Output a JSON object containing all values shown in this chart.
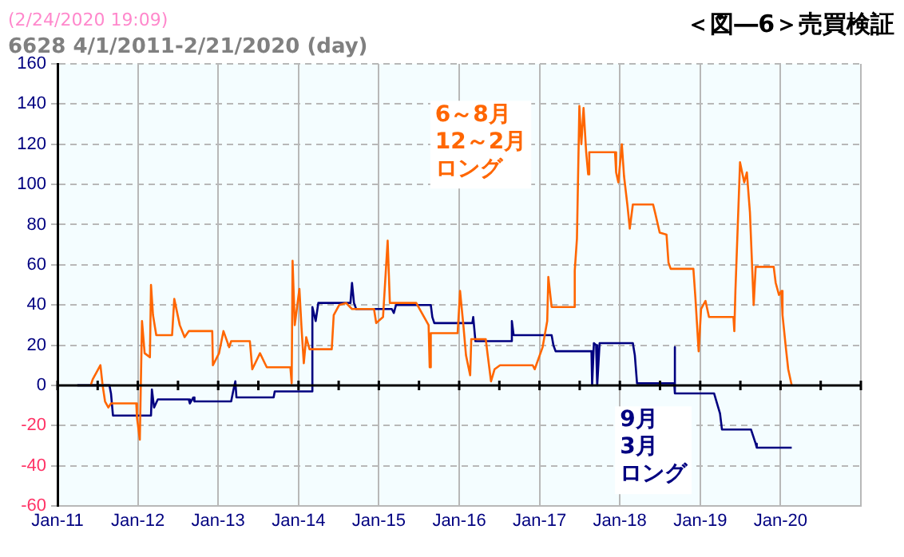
{
  "chart_data": {
    "type": "line",
    "title": "＜図―6＞売買検証",
    "subtitle": "6628  4/1/2011-2/21/2020 (day)",
    "annotations": [
      "(2/24/2020 19:09)"
    ],
    "xlim": [
      "2011-01-01",
      "2021-01-01"
    ],
    "xticks": [
      {
        "value": "2011-01-01",
        "label": "Jan-11"
      },
      {
        "value": "2012-01-01",
        "label": "Jan-12"
      },
      {
        "value": "2013-01-01",
        "label": "Jan-13"
      },
      {
        "value": "2014-01-01",
        "label": "Jan-14"
      },
      {
        "value": "2015-01-01",
        "label": "Jan-15"
      },
      {
        "value": "2016-01-01",
        "label": "Jan-16"
      },
      {
        "value": "2017-01-01",
        "label": "Jan-17"
      },
      {
        "value": "2018-01-01",
        "label": "Jan-18"
      },
      {
        "value": "2019-01-01",
        "label": "Jan-19"
      },
      {
        "value": "2020-01-01",
        "label": "Jan-20"
      },
      {
        "value": "2021-01-01",
        "label": null
      }
    ],
    "ylim": [
      -60,
      160
    ],
    "yticks": [
      -60,
      -40,
      -20,
      0,
      20,
      40,
      60,
      80,
      100,
      120,
      140,
      160
    ],
    "grid": true,
    "legend": false,
    "marker": "none",
    "line_style": "solid",
    "ref_lines": [
      {
        "axis": "y",
        "value": 0,
        "color": "#000000"
      }
    ],
    "series": [
      {
        "name": "6～8月12～2月ロング",
        "color": "#ff6600",
        "x": [
          "2011-06-01",
          "2011-06-10",
          "2011-07-15",
          "2011-07-25",
          "2011-08-05",
          "2011-08-20",
          "2011-09-01",
          "2011-12-25",
          "2011-12-28",
          "2012-01-10",
          "2012-01-20",
          "2012-02-01",
          "2012-02-25",
          "2012-03-01",
          "2012-03-10",
          "2012-03-25",
          "2012-06-05",
          "2012-06-15",
          "2012-07-10",
          "2012-08-01",
          "2012-08-20",
          "2012-12-05",
          "2012-12-08",
          "2013-01-05",
          "2013-01-25",
          "2013-02-20",
          "2013-03-01",
          "2013-05-25",
          "2013-06-05",
          "2013-07-10",
          "2013-08-01",
          "2013-08-10",
          "2013-11-25",
          "2013-12-01",
          "2013-12-05",
          "2013-12-15",
          "2014-01-05",
          "2014-01-15",
          "2014-01-25",
          "2014-02-05",
          "2014-02-20",
          "2014-06-01",
          "2014-06-10",
          "2014-07-05",
          "2014-08-05",
          "2014-09-01",
          "2014-12-10",
          "2014-12-20",
          "2015-01-20",
          "2015-02-10",
          "2015-02-20",
          "2015-06-20",
          "2015-07-10",
          "2015-08-15",
          "2015-08-20",
          "2015-08-25",
          "2015-12-25",
          "2016-01-05",
          "2016-01-20",
          "2016-02-01",
          "2016-02-20",
          "2016-02-25",
          "2016-05-01",
          "2016-05-10",
          "2016-05-25",
          "2016-06-10",
          "2016-07-05",
          "2016-12-01",
          "2016-12-10",
          "2017-01-15",
          "2017-02-05",
          "2017-02-10",
          "2017-02-25",
          "2017-06-05",
          "2017-06-10",
          "2017-06-20",
          "2017-07-01",
          "2017-07-10",
          "2017-07-20",
          "2017-08-01",
          "2017-08-10",
          "2017-08-15",
          "2017-12-10",
          "2017-12-15",
          "2017-12-25",
          "2018-01-10",
          "2018-01-20",
          "2018-02-05",
          "2018-02-15",
          "2018-03-01",
          "2018-06-01",
          "2018-06-10",
          "2018-07-01",
          "2018-08-01",
          "2018-08-10",
          "2018-08-20",
          "2018-12-01",
          "2018-12-10",
          "2018-12-25",
          "2019-01-05",
          "2019-01-25",
          "2019-02-10",
          "2019-06-01",
          "2019-06-05",
          "2019-06-10",
          "2019-07-01",
          "2019-07-20",
          "2019-08-01",
          "2019-08-15",
          "2019-09-01",
          "2019-09-10",
          "2019-12-01",
          "2019-12-10",
          "2019-12-25",
          "2020-01-05",
          "2020-01-10",
          "2020-01-25",
          "2020-02-05",
          "2020-02-21"
        ],
        "values": [
          0,
          3,
          10,
          0,
          -8,
          -11,
          -9,
          -9,
          -16,
          -27,
          32,
          16,
          14,
          50,
          35,
          25,
          25,
          43,
          30,
          24,
          27,
          27,
          10,
          16,
          27,
          19,
          22,
          22,
          8,
          16,
          11,
          9,
          9,
          1,
          62,
          30,
          48,
          28,
          11,
          24,
          18,
          18,
          35,
          40,
          41,
          38,
          38,
          31,
          34,
          72,
          41,
          41,
          37,
          30,
          9,
          26,
          26,
          47,
          30,
          15,
          5,
          23,
          23,
          15,
          2,
          8,
          10,
          10,
          8,
          19,
          32,
          54,
          39,
          39,
          57,
          73,
          139,
          120,
          138,
          116,
          105,
          116,
          116,
          106,
          101,
          120,
          104,
          89,
          78,
          90,
          90,
          86,
          76,
          75,
          61,
          58,
          58,
          44,
          17,
          38,
          42,
          34,
          34,
          27,
          47,
          111,
          101,
          106,
          86,
          40,
          59,
          59,
          51,
          45,
          47,
          35,
          19,
          8,
          0
        ]
      },
      {
        "name": "9月3月ロング",
        "color": "#000080",
        "x": [
          "2011-04-01",
          "2011-08-25",
          "2011-09-01",
          "2011-09-10",
          "2012-03-01",
          "2012-03-05",
          "2012-03-15",
          "2012-04-01",
          "2012-08-20",
          "2012-08-25",
          "2012-09-10",
          "2012-09-15",
          "2013-03-01",
          "2013-03-10",
          "2013-03-20",
          "2013-03-25",
          "2013-09-10",
          "2013-09-15",
          "2014-03-01",
          "2014-03-05",
          "2014-03-20",
          "2014-04-01",
          "2014-08-25",
          "2014-09-01",
          "2014-09-10",
          "2014-09-20",
          "2015-03-01",
          "2015-03-10",
          "2015-03-20",
          "2015-08-25",
          "2015-09-01",
          "2015-09-10",
          "2016-03-01",
          "2016-03-05",
          "2016-03-15",
          "2016-08-25",
          "2016-08-28",
          "2016-09-05",
          "2017-02-25",
          "2017-03-05",
          "2017-03-15",
          "2017-08-25",
          "2017-08-28",
          "2017-09-05",
          "2017-09-15",
          "2017-09-20",
          "2017-10-01",
          "2018-03-01",
          "2018-03-10",
          "2018-03-20",
          "2018-09-05",
          "2018-09-06",
          "2018-09-10",
          "2019-03-05",
          "2019-04-01",
          "2019-04-10",
          "2019-08-20",
          "2019-09-10",
          "2019-09-15",
          "2020-02-21"
        ],
        "values": [
          0,
          0,
          -4,
          -15,
          -15,
          -2,
          -11,
          -7,
          -7,
          -9,
          -6,
          -8,
          -8,
          -3,
          2,
          -6,
          -6,
          -3,
          -3,
          39,
          32,
          41,
          41,
          51,
          41,
          38,
          38,
          36,
          40,
          40,
          34,
          31,
          31,
          34,
          22,
          22,
          32,
          25,
          25,
          20,
          17,
          17,
          0,
          21,
          20,
          0,
          21,
          21,
          15,
          1,
          1,
          19,
          -4,
          -4,
          -14,
          -22,
          -22,
          -29,
          -31,
          -31
        ]
      }
    ]
  }
}
